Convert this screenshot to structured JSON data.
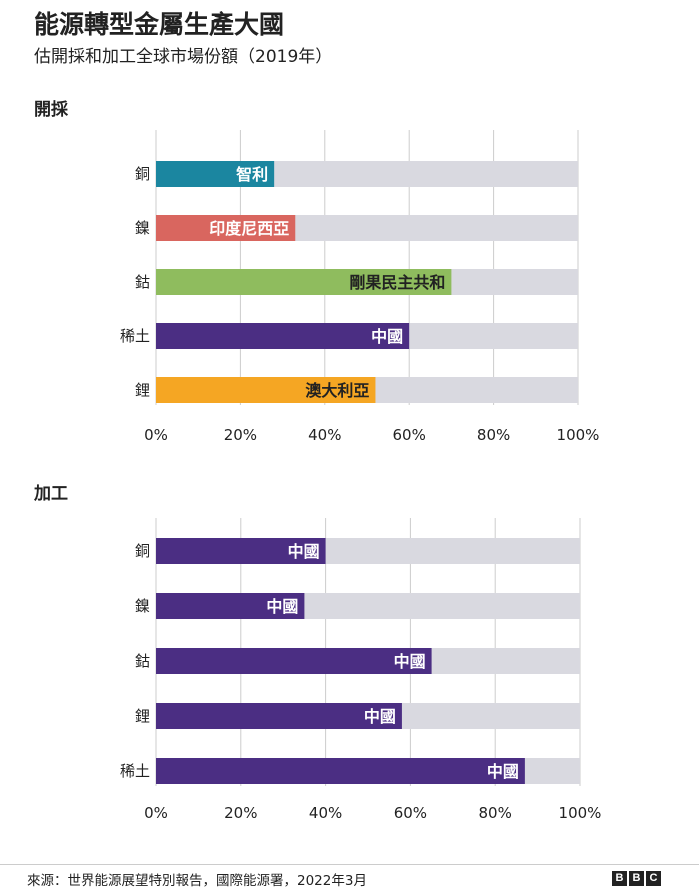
{
  "title": "能源轉型金屬生產大國",
  "subtitle": "估開採和加工全球市場份額（2019年）",
  "source": "來源：世界能源展望特別報告，國際能源署，2022年3月",
  "logo": [
    "B",
    "B",
    "C"
  ],
  "colors": {
    "track": "#d9d9e0",
    "gridline": "#cccccc",
    "teal": "#1b86a0",
    "red": "#d9665f",
    "green": "#8fbc5e",
    "purple": "#4b2e83",
    "orange": "#f5a623"
  },
  "chart_data": [
    {
      "type": "bar",
      "orientation": "horizontal",
      "section_label": "開採",
      "categories": [
        "銅",
        "鎳",
        "鈷",
        "稀土",
        "鋰"
      ],
      "values": [
        28,
        33,
        70,
        60,
        52
      ],
      "leaders": [
        "智利",
        "印度尼西亞",
        "剛果民主共和",
        "中國",
        "澳大利亞"
      ],
      "bar_colors": [
        "teal",
        "red",
        "green",
        "purple",
        "orange"
      ],
      "label_style": [
        "light",
        "light",
        "dark",
        "light",
        "dark"
      ],
      "xlim": [
        0,
        100
      ],
      "ticks": [
        "0%",
        "20%",
        "40%",
        "60%",
        "80%",
        "100%"
      ],
      "tick_values": [
        0,
        20,
        40,
        60,
        80,
        100
      ]
    },
    {
      "type": "bar",
      "orientation": "horizontal",
      "section_label": "加工",
      "categories": [
        "銅",
        "鎳",
        "鈷",
        "鋰",
        "稀土"
      ],
      "values": [
        40,
        35,
        65,
        58,
        87
      ],
      "leaders": [
        "中國",
        "中國",
        "中國",
        "中國",
        "中國"
      ],
      "bar_colors": [
        "purple",
        "purple",
        "purple",
        "purple",
        "purple"
      ],
      "label_style": [
        "light",
        "light",
        "light",
        "light",
        "light"
      ],
      "xlim": [
        0,
        100
      ],
      "ticks": [
        "0%",
        "20%",
        "40%",
        "60%",
        "80%",
        "100%"
      ],
      "tick_values": [
        0,
        20,
        40,
        60,
        80,
        100
      ]
    }
  ]
}
